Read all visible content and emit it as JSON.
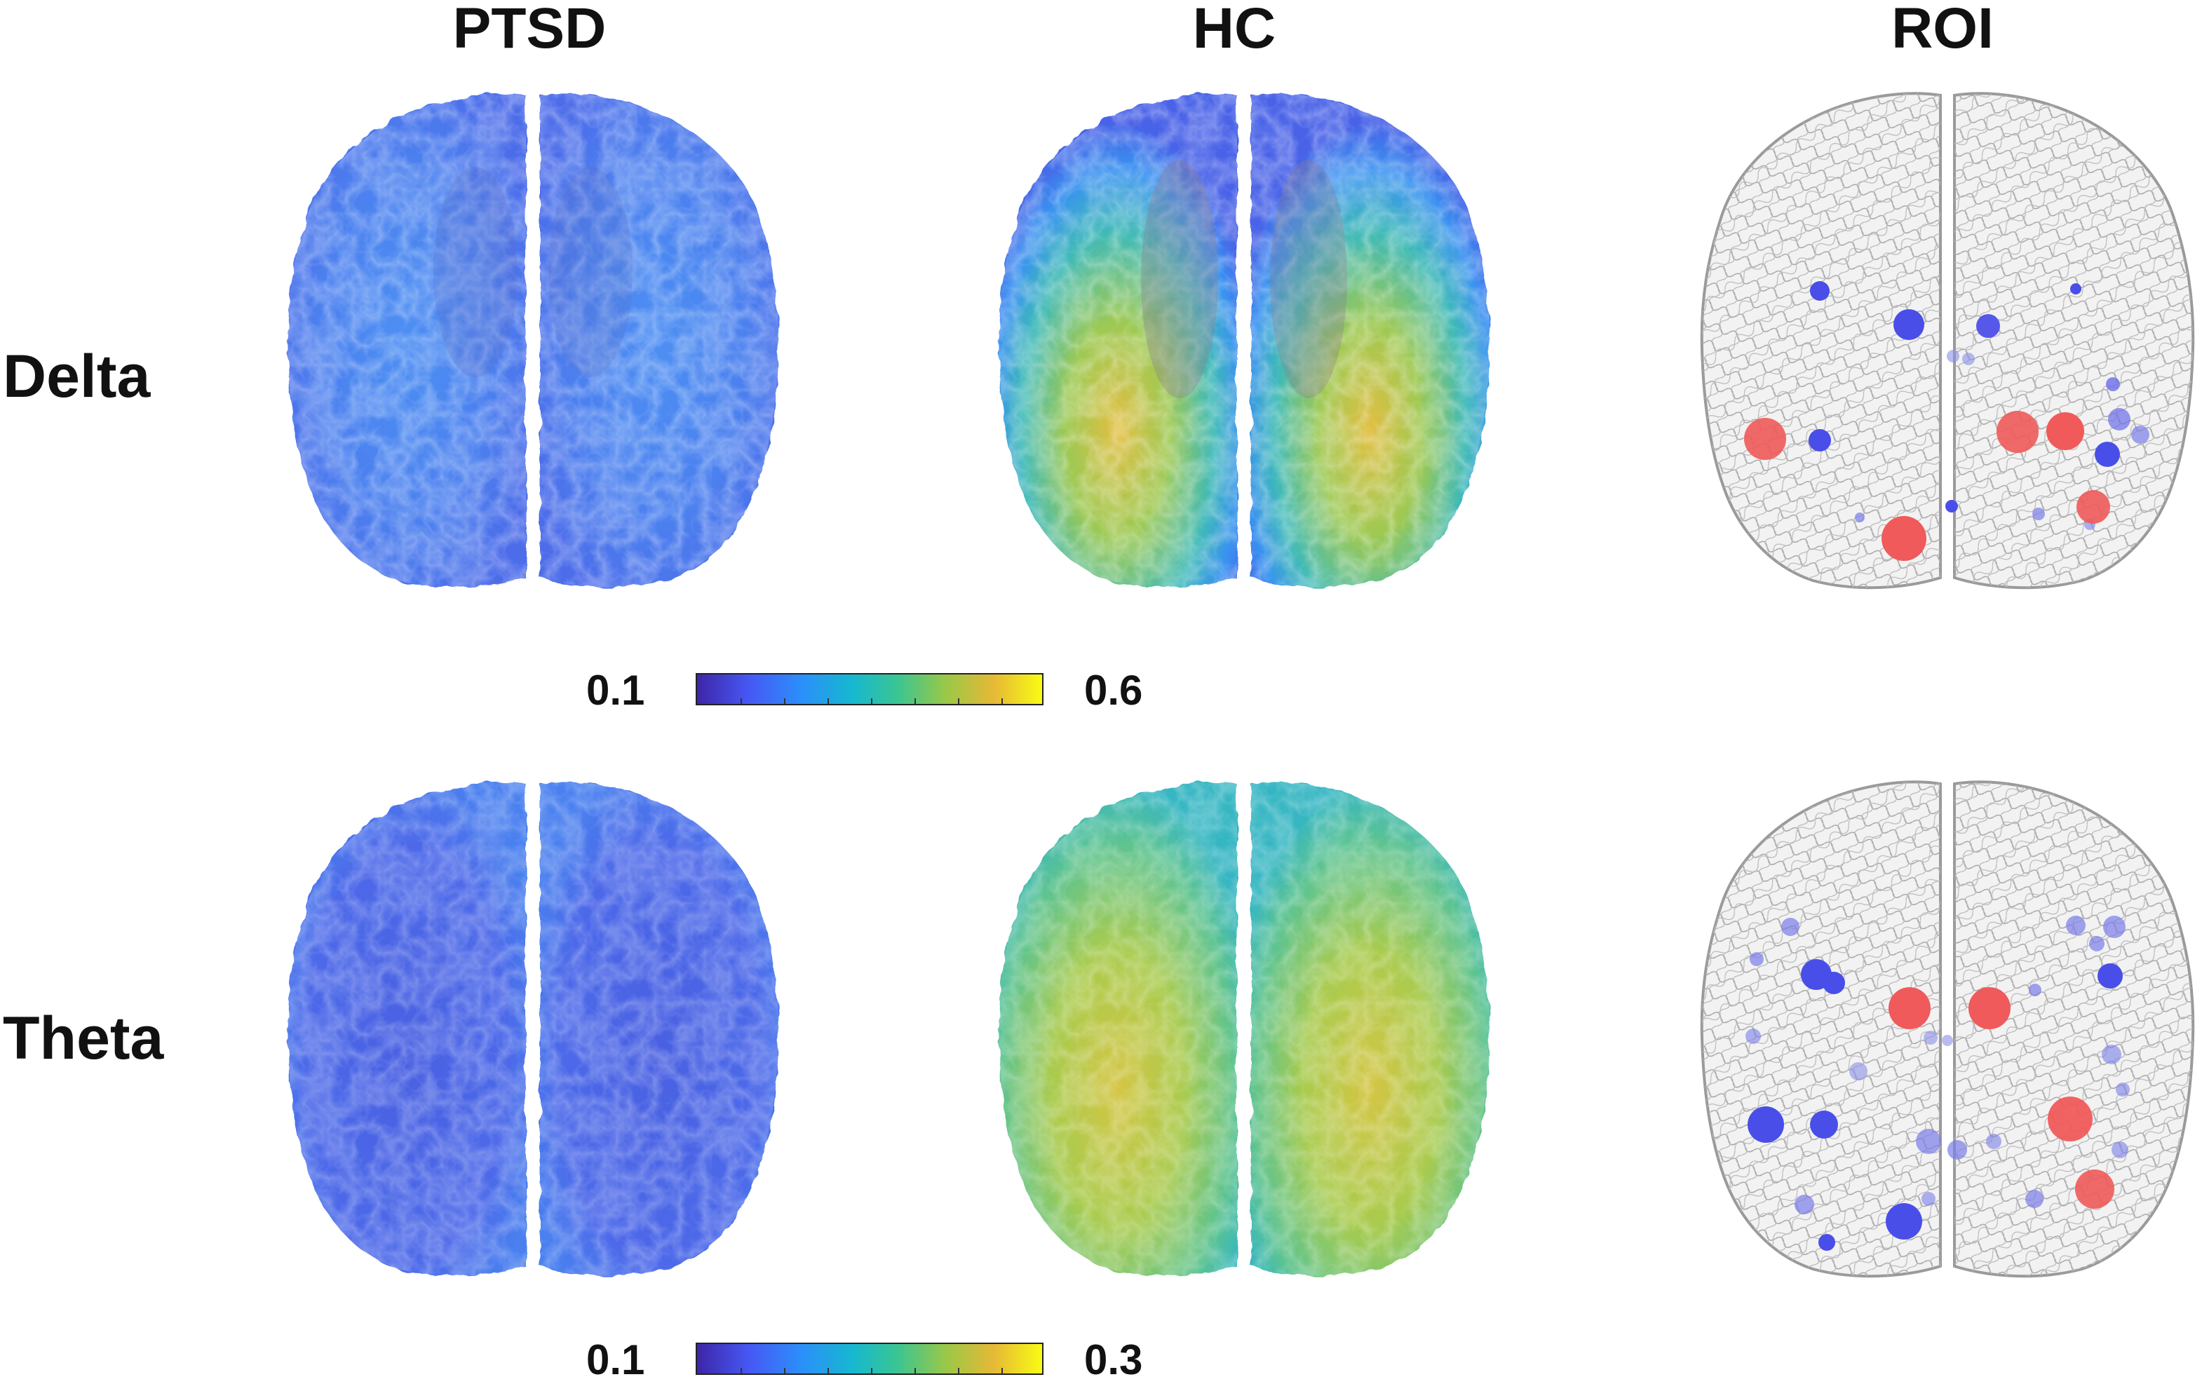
{
  "columns": {
    "ptsd": "PTSD",
    "hc": "HC",
    "roi": "ROI"
  },
  "rows": {
    "delta": "Delta",
    "theta": "Theta"
  },
  "colorbars": [
    {
      "min_label": "0.1",
      "max_label": "0.6"
    },
    {
      "min_label": "0.1",
      "max_label": "0.3"
    }
  ],
  "colormap": [
    "#3d26a8",
    "#4658f4",
    "#2c8efb",
    "#16b8d0",
    "#3ac593",
    "#99c848",
    "#e6b936",
    "#f9fb14"
  ],
  "colors": {
    "roi_increase": "#f05a5a",
    "roi_decrease": "#4a4ee8",
    "roi_outline": "#9a9a9a"
  }
}
